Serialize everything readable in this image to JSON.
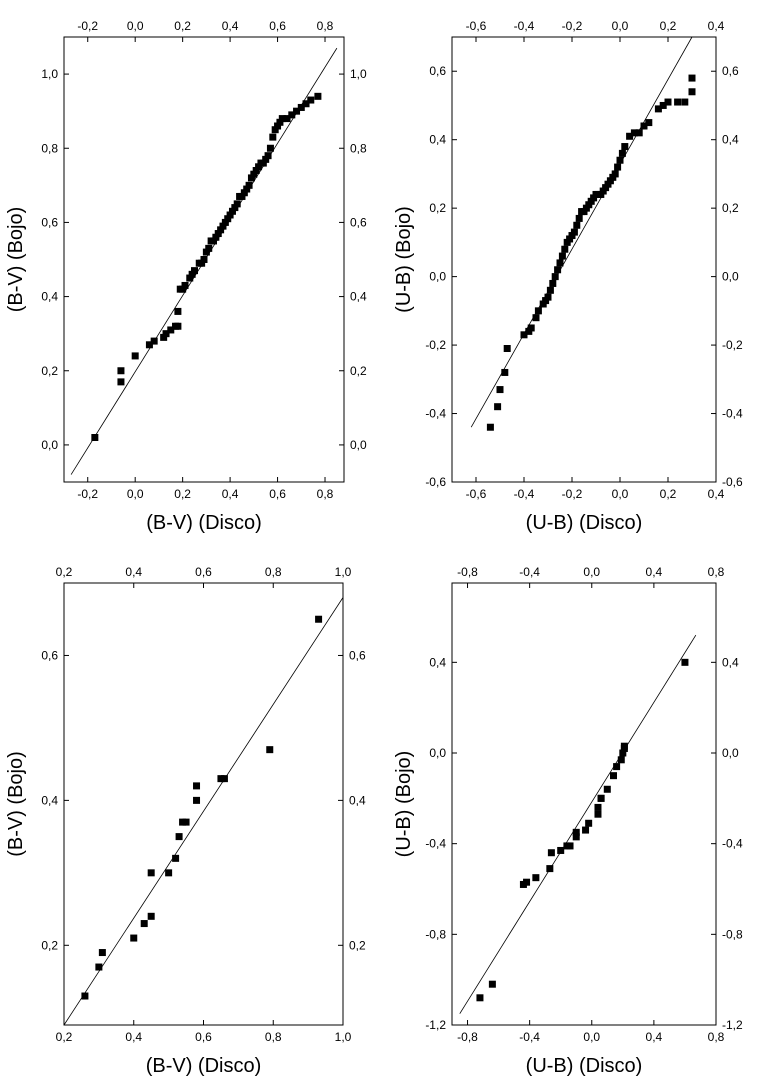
{
  "chart_data": [
    {
      "type": "scatter",
      "panel": "top-left",
      "xlabel": "(B-V) (Disco)",
      "ylabel": "(B-V) (Bojo)",
      "xlim": [
        -0.3,
        0.88
      ],
      "ylim": [
        -0.1,
        1.1
      ],
      "xticks": [
        -0.2,
        0.0,
        0.2,
        0.4,
        0.6,
        0.8
      ],
      "xtick_labels": [
        "-0,2",
        "0,0",
        "0,2",
        "0,4",
        "0,6",
        "0,8"
      ],
      "yticks": [
        0.0,
        0.2,
        0.4,
        0.6,
        0.8,
        1.0
      ],
      "ytick_labels": [
        "0,0",
        "0,2",
        "0,4",
        "0,6",
        "0,8",
        "1,0"
      ],
      "fit_line": [
        [
          -0.27,
          -0.08
        ],
        [
          0.85,
          1.07
        ]
      ],
      "x": [
        -0.17,
        -0.06,
        -0.06,
        0.0,
        0.06,
        0.08,
        0.12,
        0.13,
        0.15,
        0.17,
        0.18,
        0.18,
        0.19,
        0.2,
        0.21,
        0.23,
        0.24,
        0.25,
        0.27,
        0.28,
        0.29,
        0.3,
        0.31,
        0.32,
        0.33,
        0.34,
        0.35,
        0.36,
        0.37,
        0.38,
        0.39,
        0.4,
        0.41,
        0.42,
        0.43,
        0.44,
        0.45,
        0.46,
        0.47,
        0.48,
        0.49,
        0.5,
        0.51,
        0.52,
        0.53,
        0.54,
        0.55,
        0.56,
        0.57,
        0.58,
        0.59,
        0.6,
        0.61,
        0.62,
        0.64,
        0.66,
        0.68,
        0.7,
        0.72,
        0.74,
        0.77
      ],
      "y": [
        0.02,
        0.2,
        0.17,
        0.24,
        0.27,
        0.28,
        0.29,
        0.3,
        0.31,
        0.32,
        0.32,
        0.36,
        0.42,
        0.42,
        0.43,
        0.45,
        0.46,
        0.47,
        0.49,
        0.49,
        0.5,
        0.52,
        0.53,
        0.55,
        0.55,
        0.56,
        0.57,
        0.58,
        0.59,
        0.6,
        0.61,
        0.62,
        0.63,
        0.64,
        0.65,
        0.67,
        0.67,
        0.68,
        0.69,
        0.7,
        0.72,
        0.73,
        0.74,
        0.75,
        0.76,
        0.76,
        0.77,
        0.78,
        0.8,
        0.83,
        0.85,
        0.86,
        0.87,
        0.88,
        0.88,
        0.89,
        0.9,
        0.91,
        0.92,
        0.93,
        0.94
      ]
    },
    {
      "type": "scatter",
      "panel": "top-right",
      "xlabel": "(U-B) (Disco)",
      "ylabel": "(U-B) (Bojo)",
      "xlim": [
        -0.7,
        0.4
      ],
      "ylim": [
        -0.6,
        0.7
      ],
      "xticks": [
        -0.6,
        -0.4,
        -0.2,
        0.0,
        0.2,
        0.4
      ],
      "xtick_labels": [
        "-0,6",
        "-0,4",
        "-0,2",
        "0,0",
        "0,2",
        "0,4"
      ],
      "yticks": [
        -0.6,
        -0.4,
        -0.2,
        0.0,
        0.2,
        0.4,
        0.6
      ],
      "ytick_labels": [
        "-0,6",
        "-0,4",
        "-0,2",
        "0,0",
        "0,2",
        "0,4",
        "0,6"
      ],
      "fit_line": [
        [
          -0.62,
          -0.44
        ],
        [
          0.3,
          0.7
        ]
      ],
      "x": [
        -0.54,
        -0.51,
        -0.5,
        -0.48,
        -0.47,
        -0.4,
        -0.38,
        -0.37,
        -0.35,
        -0.34,
        -0.32,
        -0.31,
        -0.3,
        -0.29,
        -0.28,
        -0.27,
        -0.26,
        -0.25,
        -0.24,
        -0.23,
        -0.22,
        -0.21,
        -0.2,
        -0.19,
        -0.18,
        -0.17,
        -0.16,
        -0.15,
        -0.14,
        -0.13,
        -0.12,
        -0.11,
        -0.1,
        -0.09,
        -0.08,
        -0.07,
        -0.06,
        -0.05,
        -0.04,
        -0.03,
        -0.02,
        -0.01,
        0.0,
        0.01,
        0.02,
        0.04,
        0.06,
        0.08,
        0.1,
        0.12,
        0.16,
        0.18,
        0.2,
        0.24,
        0.27,
        0.3,
        0.3
      ],
      "y": [
        -0.44,
        -0.38,
        -0.33,
        -0.28,
        -0.21,
        -0.17,
        -0.16,
        -0.15,
        -0.12,
        -0.1,
        -0.08,
        -0.07,
        -0.06,
        -0.04,
        -0.02,
        0.0,
        0.02,
        0.04,
        0.06,
        0.08,
        0.1,
        0.11,
        0.12,
        0.13,
        0.15,
        0.17,
        0.19,
        0.19,
        0.2,
        0.21,
        0.22,
        0.23,
        0.24,
        0.24,
        0.24,
        0.25,
        0.26,
        0.27,
        0.28,
        0.29,
        0.3,
        0.32,
        0.34,
        0.36,
        0.38,
        0.41,
        0.42,
        0.42,
        0.44,
        0.45,
        0.49,
        0.5,
        0.51,
        0.51,
        0.51,
        0.54,
        0.58
      ]
    },
    {
      "type": "scatter",
      "panel": "bottom-left",
      "xlabel": "(B-V) (Disco)",
      "ylabel": "(B-V) (Bojo)",
      "xlim": [
        0.2,
        1.0
      ],
      "ylim": [
        0.09,
        0.7
      ],
      "xticks": [
        0.2,
        0.4,
        0.6,
        0.8,
        1.0
      ],
      "xtick_labels": [
        "0,2",
        "0,4",
        "0,6",
        "0,8",
        "1,0"
      ],
      "yticks": [
        0.2,
        0.4,
        0.6
      ],
      "ytick_labels": [
        "0,2",
        "0,4",
        "0,6"
      ],
      "fit_line": [
        [
          0.2,
          0.09
        ],
        [
          1.0,
          0.68
        ]
      ],
      "x": [
        0.26,
        0.3,
        0.31,
        0.4,
        0.43,
        0.45,
        0.45,
        0.5,
        0.52,
        0.53,
        0.54,
        0.55,
        0.58,
        0.58,
        0.65,
        0.66,
        0.79,
        0.93
      ],
      "y": [
        0.13,
        0.17,
        0.19,
        0.21,
        0.23,
        0.24,
        0.3,
        0.3,
        0.32,
        0.35,
        0.37,
        0.37,
        0.4,
        0.42,
        0.43,
        0.43,
        0.47,
        0.65
      ]
    },
    {
      "type": "scatter",
      "panel": "bottom-right",
      "xlabel": "(U-B) (Disco)",
      "ylabel": "(U-B) (Bojo)",
      "xlim": [
        -0.9,
        0.8
      ],
      "ylim": [
        -1.2,
        0.75
      ],
      "xticks": [
        -0.8,
        -0.4,
        0.0,
        0.4,
        0.8
      ],
      "xtick_labels": [
        "-0,8",
        "-0,4",
        "0,0",
        "0,4",
        "0,8"
      ],
      "yticks": [
        -1.2,
        -0.8,
        -0.4,
        0.0,
        0.4
      ],
      "ytick_labels": [
        "-1,2",
        "-0,8",
        "-0,4",
        "0,0",
        "0,4"
      ],
      "fit_line": [
        [
          -0.85,
          -1.15
        ],
        [
          0.67,
          0.52
        ]
      ],
      "x": [
        -0.72,
        -0.64,
        -0.44,
        -0.42,
        -0.36,
        -0.27,
        -0.26,
        -0.2,
        -0.16,
        -0.14,
        -0.1,
        -0.1,
        -0.04,
        -0.02,
        0.04,
        0.04,
        0.06,
        0.06,
        0.1,
        0.14,
        0.16,
        0.19,
        0.2,
        0.21,
        0.21,
        0.6
      ],
      "y": [
        -1.08,
        -1.02,
        -0.58,
        -0.57,
        -0.55,
        -0.51,
        -0.44,
        -0.43,
        -0.41,
        -0.41,
        -0.37,
        -0.35,
        -0.34,
        -0.31,
        -0.27,
        -0.24,
        -0.2,
        -0.2,
        -0.16,
        -0.1,
        -0.06,
        -0.03,
        0.0,
        0.02,
        0.03,
        0.4
      ]
    }
  ]
}
